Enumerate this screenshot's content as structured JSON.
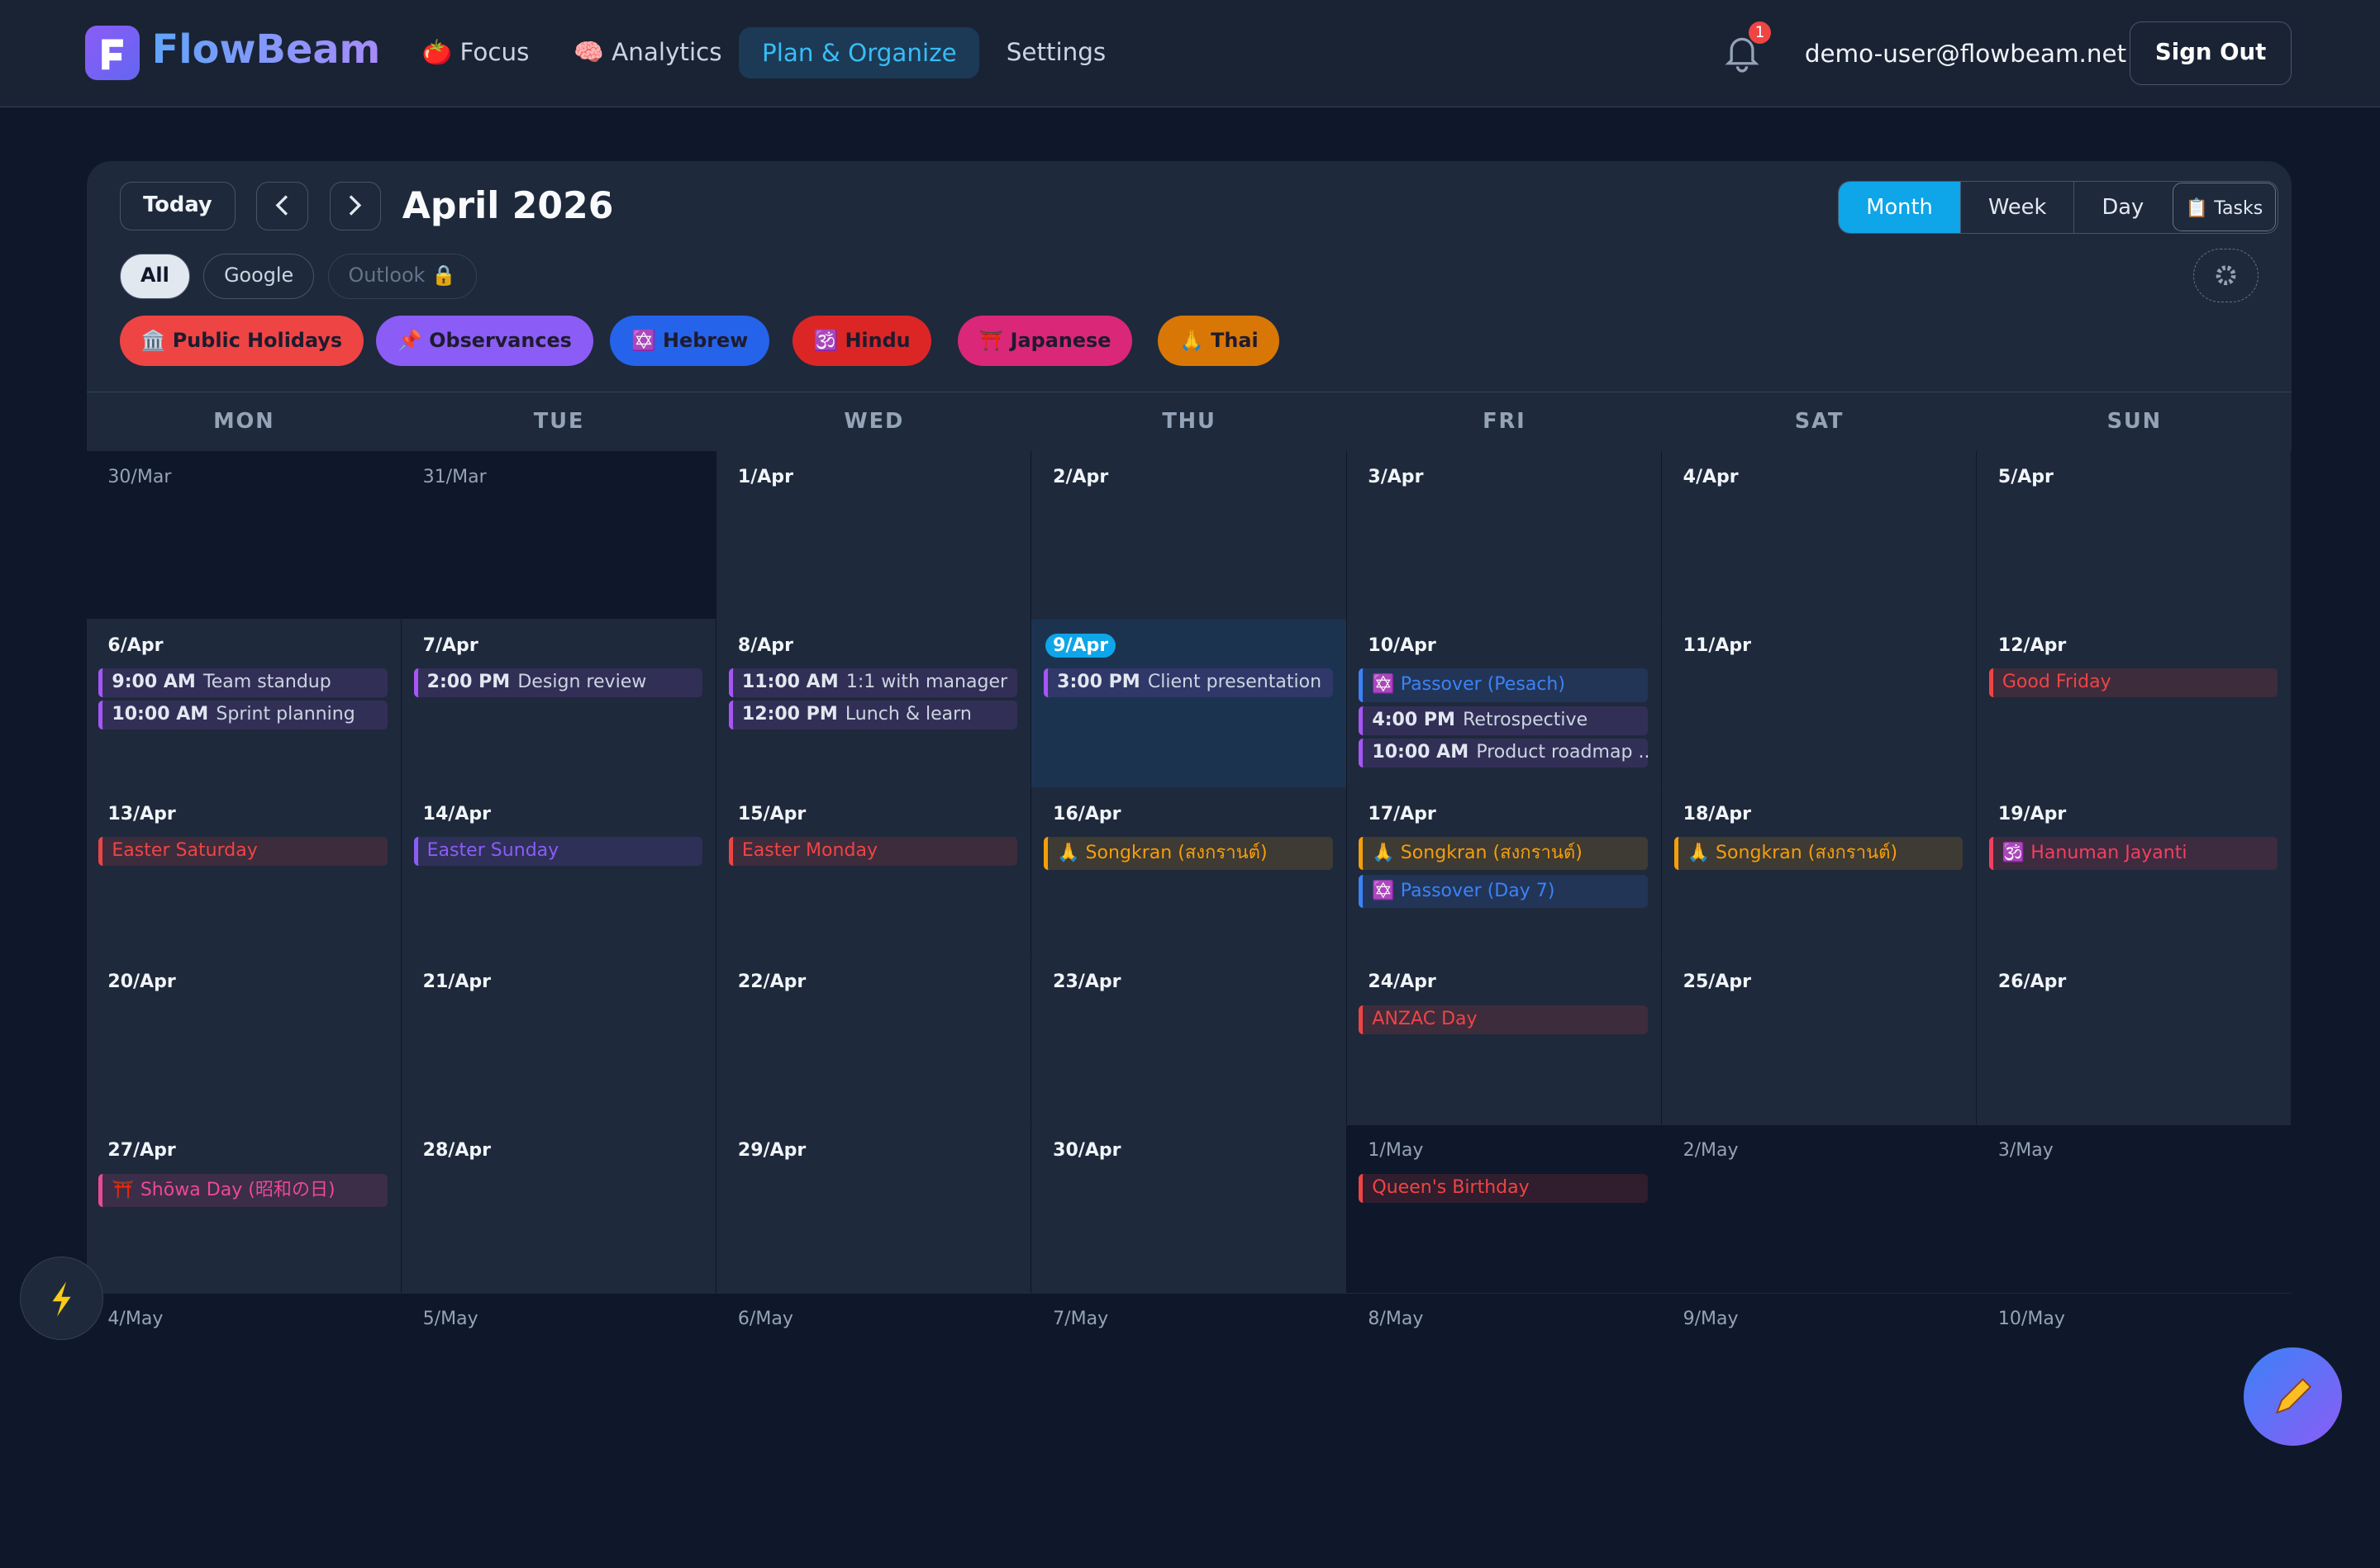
{
  "header": {
    "brand": "FlowBeam",
    "nav": [
      "🍅 Focus",
      "🧠 Analytics",
      "Plan & Organize",
      "Settings"
    ],
    "active_nav": 2,
    "notifications": "1",
    "email": "demo-user@flowbeam.net",
    "sign_out": "Sign Out"
  },
  "toolbar": {
    "today": "Today",
    "title": "April 2026",
    "views": [
      "Month",
      "Week",
      "Day",
      "📋 Tasks"
    ],
    "active_view": 0,
    "sources": [
      "All",
      "Google",
      "Outlook 🔒"
    ],
    "active_source": 0,
    "categories": [
      {
        "label": "🏛️ Public Holidays",
        "color": "#ef4444"
      },
      {
        "label": "📌 Observances",
        "color": "#8b5cf6"
      },
      {
        "label": "✡️ Hebrew",
        "color": "#2563eb"
      },
      {
        "label": "🕉️ Hindu",
        "color": "#dc2626"
      },
      {
        "label": "⛩️ Japanese",
        "color": "#db2777"
      },
      {
        "label": "🙏 Thai",
        "color": "#d97706"
      }
    ]
  },
  "calendar": {
    "weekdays": [
      "MON",
      "TUE",
      "WED",
      "THU",
      "FRI",
      "SAT",
      "SUN"
    ],
    "weeks": [
      [
        {
          "date": "30/Mar",
          "other_month": true,
          "events": []
        },
        {
          "date": "31/Mar",
          "other_month": true,
          "events": []
        },
        {
          "date": "1/Apr",
          "events": []
        },
        {
          "date": "2/Apr",
          "events": []
        },
        {
          "date": "3/Apr",
          "events": []
        },
        {
          "date": "4/Apr",
          "events": []
        },
        {
          "date": "5/Apr",
          "events": []
        }
      ],
      [
        {
          "date": "6/Apr",
          "events": [
            {
              "time": "9:00 AM",
              "title": "Team standup",
              "color": "#a855f7"
            },
            {
              "time": "10:00 AM",
              "title": "Sprint planning",
              "color": "#a855f7"
            }
          ]
        },
        {
          "date": "7/Apr",
          "events": [
            {
              "time": "2:00 PM",
              "title": "Design review",
              "color": "#a855f7"
            }
          ]
        },
        {
          "date": "8/Apr",
          "events": [
            {
              "time": "11:00 AM",
              "title": "1:1 with manager",
              "color": "#a855f7"
            },
            {
              "time": "12:00 PM",
              "title": "Lunch & learn",
              "color": "#a855f7"
            }
          ]
        },
        {
          "date": "9/Apr",
          "today": true,
          "events": [
            {
              "time": "3:00 PM",
              "title": "Client presentation",
              "color": "#a855f7"
            }
          ]
        },
        {
          "date": "10/Apr",
          "events": [
            {
              "title": "✡️ Passover (Pesach)",
              "color": "#3b82f6"
            },
            {
              "time": "4:00 PM",
              "title": "Retrospective",
              "color": "#a855f7"
            },
            {
              "time": "10:00 AM",
              "title": "Product roadmap ...",
              "color": "#a855f7"
            }
          ]
        },
        {
          "date": "11/Apr",
          "events": []
        },
        {
          "date": "12/Apr",
          "events": [
            {
              "title": "Good Friday",
              "color": "#ef4444"
            }
          ]
        }
      ],
      [
        {
          "date": "13/Apr",
          "events": [
            {
              "title": "Easter Saturday",
              "color": "#ef4444"
            }
          ]
        },
        {
          "date": "14/Apr",
          "events": [
            {
              "title": "Easter Sunday",
              "color": "#8b5cf6"
            }
          ]
        },
        {
          "date": "15/Apr",
          "events": [
            {
              "title": "Easter Monday",
              "color": "#ef4444"
            }
          ]
        },
        {
          "date": "16/Apr",
          "events": [
            {
              "title": "🙏 Songkran (สงกรานต์)",
              "color": "#f59e0b"
            }
          ]
        },
        {
          "date": "17/Apr",
          "events": [
            {
              "title": "🙏 Songkran (สงกรานต์)",
              "color": "#f59e0b"
            },
            {
              "title": "✡️ Passover (Day 7)",
              "color": "#3b82f6"
            }
          ]
        },
        {
          "date": "18/Apr",
          "events": [
            {
              "title": "🙏 Songkran (สงกรานต์)",
              "color": "#f59e0b"
            }
          ]
        },
        {
          "date": "19/Apr",
          "events": [
            {
              "title": "🕉️ Hanuman Jayanti",
              "color": "#f43f5e"
            }
          ]
        }
      ],
      [
        {
          "date": "20/Apr",
          "events": []
        },
        {
          "date": "21/Apr",
          "events": []
        },
        {
          "date": "22/Apr",
          "events": []
        },
        {
          "date": "23/Apr",
          "events": []
        },
        {
          "date": "24/Apr",
          "events": [
            {
              "title": "ANZAC Day",
              "color": "#ef4444"
            }
          ]
        },
        {
          "date": "25/Apr",
          "events": []
        },
        {
          "date": "26/Apr",
          "events": []
        }
      ],
      [
        {
          "date": "27/Apr",
          "events": [
            {
              "title": "⛩️ Shōwa Day (昭和の日)",
              "color": "#ec4899"
            }
          ]
        },
        {
          "date": "28/Apr",
          "events": []
        },
        {
          "date": "29/Apr",
          "events": []
        },
        {
          "date": "30/Apr",
          "events": []
        },
        {
          "date": "1/May",
          "other_month": true,
          "events": [
            {
              "title": "Queen's Birthday",
              "color": "#ef4444"
            }
          ]
        },
        {
          "date": "2/May",
          "other_month": true,
          "events": []
        },
        {
          "date": "3/May",
          "other_month": true,
          "events": []
        }
      ],
      [
        {
          "date": "4/May",
          "other_month": true,
          "events": []
        },
        {
          "date": "5/May",
          "other_month": true,
          "events": []
        },
        {
          "date": "6/May",
          "other_month": true,
          "events": []
        },
        {
          "date": "7/May",
          "other_month": true,
          "events": []
        },
        {
          "date": "8/May",
          "other_month": true,
          "events": []
        },
        {
          "date": "9/May",
          "other_month": true,
          "events": []
        },
        {
          "date": "10/May",
          "other_month": true,
          "events": []
        }
      ]
    ]
  }
}
